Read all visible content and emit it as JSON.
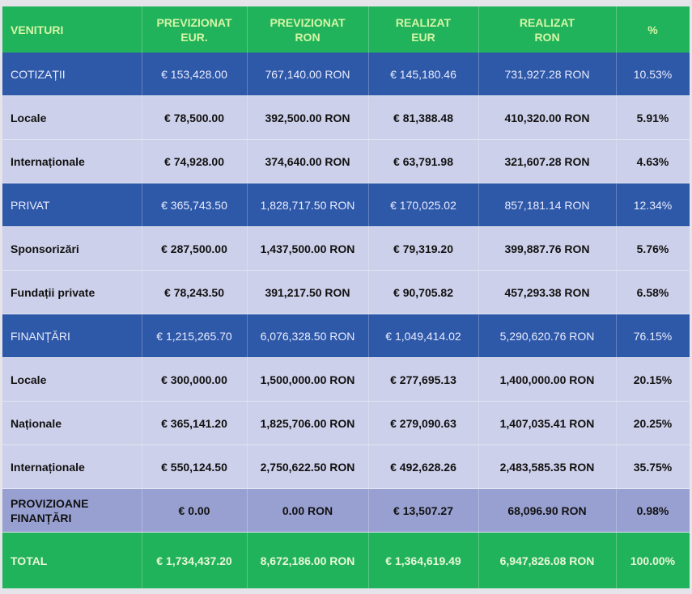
{
  "headers": [
    "VENITURI",
    "PREVIZIONAT EUR.",
    "PREVIZIONAT RON",
    "REALIZAT EUR",
    "REALIZAT RON",
    "%"
  ],
  "colors": {
    "header": "#21b35b",
    "category": "#2e58a8",
    "subrow": "#cdd0ea",
    "provision": "#98a0d2",
    "total": "#21b35b"
  },
  "rows": [
    {
      "type": "cat",
      "cells": [
        "COTIZAȚII",
        "€ 153,428.00",
        "767,140.00 RON",
        "€ 145,180.46",
        "731,927.28 RON",
        "10.53%"
      ]
    },
    {
      "type": "sub",
      "cells": [
        "Locale",
        "€ 78,500.00",
        "392,500.00 RON",
        "€ 81,388.48",
        "410,320.00 RON",
        "5.91%"
      ]
    },
    {
      "type": "sub",
      "cells": [
        "Internaționale",
        "€ 74,928.00",
        "374,640.00 RON",
        "€ 63,791.98",
        "321,607.28 RON",
        "4.63%"
      ]
    },
    {
      "type": "cat",
      "cells": [
        "PRIVAT",
        "€ 365,743.50",
        "1,828,717.50 RON",
        "€ 170,025.02",
        "857,181.14 RON",
        "12.34%"
      ]
    },
    {
      "type": "sub",
      "cells": [
        "Sponsorizări",
        "€ 287,500.00",
        "1,437,500.00 RON",
        "€ 79,319.20",
        "399,887.76 RON",
        "5.76%"
      ]
    },
    {
      "type": "sub",
      "cells": [
        "Fundații private",
        "€ 78,243.50",
        "391,217.50 RON",
        "€ 90,705.82",
        "457,293.38 RON",
        "6.58%"
      ]
    },
    {
      "type": "cat",
      "cells": [
        "FINANȚĂRI",
        "€ 1,215,265.70",
        "6,076,328.50 RON",
        "€ 1,049,414.02",
        "5,290,620.76 RON",
        "76.15%"
      ]
    },
    {
      "type": "sub",
      "cells": [
        "Locale",
        "€ 300,000.00",
        "1,500,000.00 RON",
        "€ 277,695.13",
        "1,400,000.00 RON",
        "20.15%"
      ]
    },
    {
      "type": "sub",
      "cells": [
        "Naționale",
        "€ 365,141.20",
        "1,825,706.00 RON",
        "€ 279,090.63",
        "1,407,035.41 RON",
        "20.25%"
      ]
    },
    {
      "type": "sub",
      "cells": [
        "Internaționale",
        "€ 550,124.50",
        "2,750,622.50 RON",
        "€ 492,628.26",
        "2,483,585.35 RON",
        "35.75%"
      ]
    },
    {
      "type": "prov",
      "cells": [
        "PROVIZIOANE FINANȚĂRI",
        "€ 0.00",
        "0.00 RON",
        "€ 13,507.27",
        "68,096.90 RON",
        "0.98%"
      ]
    }
  ],
  "total": [
    "TOTAL",
    "€ 1,734,437.20",
    "8,672,186.00 RON",
    "€ 1,364,619.49",
    "6,947,826.08 RON",
    "100.00%"
  ]
}
